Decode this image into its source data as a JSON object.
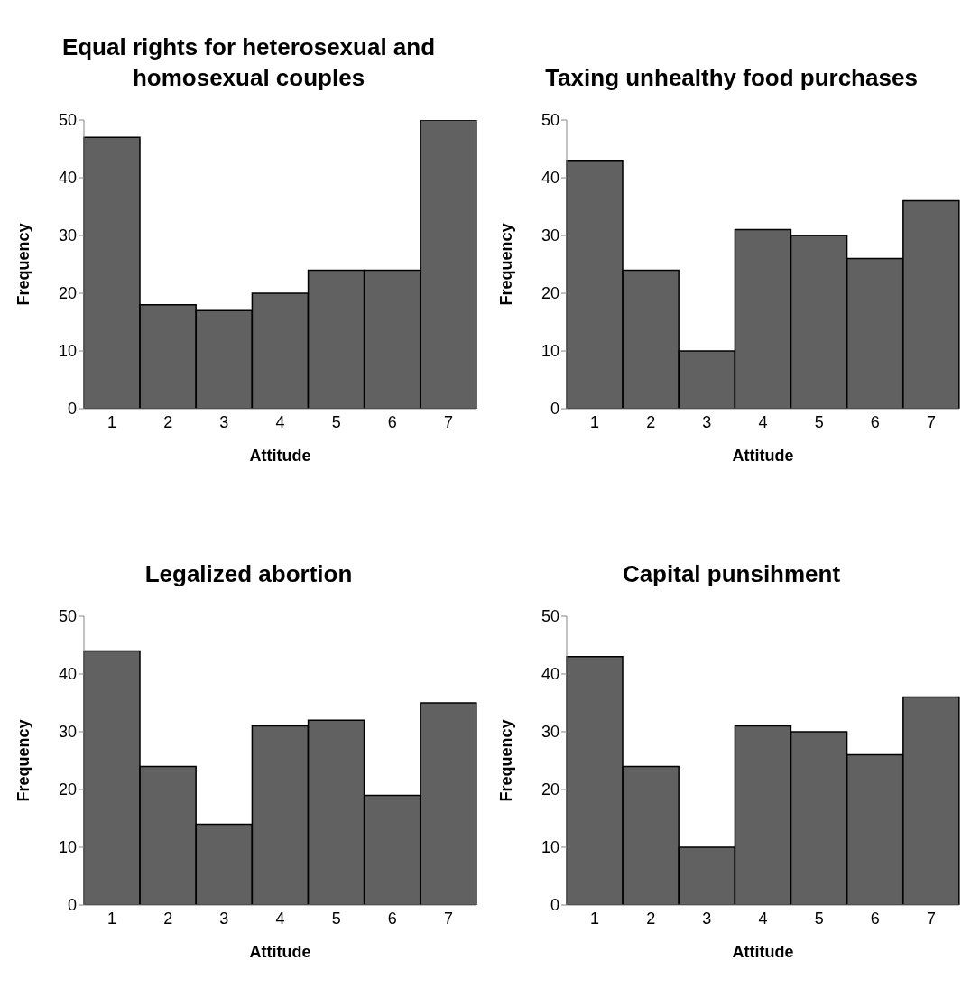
{
  "chart_data": [
    {
      "type": "bar",
      "title": "Equal rights for heterosexual and homosexual couples",
      "xlabel": "Attitude",
      "ylabel": "Frequency",
      "categories": [
        "1",
        "2",
        "3",
        "4",
        "5",
        "6",
        "7"
      ],
      "values": [
        47,
        18,
        17,
        20,
        24,
        24,
        50
      ],
      "color": "#616161",
      "ylim": [
        0,
        50
      ],
      "yticks": [
        0,
        10,
        20,
        30,
        40,
        50
      ]
    },
    {
      "type": "bar",
      "title": "Taxing unhealthy food purchases",
      "xlabel": "Attitude",
      "ylabel": "Frequency",
      "categories": [
        "1",
        "2",
        "3",
        "4",
        "5",
        "6",
        "7"
      ],
      "values": [
        43,
        24,
        10,
        31,
        30,
        26,
        36
      ],
      "color": "#616161",
      "ylim": [
        0,
        50
      ],
      "yticks": [
        0,
        10,
        20,
        30,
        40,
        50
      ]
    },
    {
      "type": "bar",
      "title": "Legalized abortion",
      "xlabel": "Attitude",
      "ylabel": "Frequency",
      "categories": [
        "1",
        "2",
        "3",
        "4",
        "5",
        "6",
        "7"
      ],
      "values": [
        44,
        24,
        14,
        31,
        32,
        19,
        35
      ],
      "color": "#616161",
      "ylim": [
        0,
        50
      ],
      "yticks": [
        0,
        10,
        20,
        30,
        40,
        50
      ]
    },
    {
      "type": "bar",
      "title": "Capital punsihment",
      "xlabel": "Attitude",
      "ylabel": "Frequency",
      "categories": [
        "1",
        "2",
        "3",
        "4",
        "5",
        "6",
        "7"
      ],
      "values": [
        43,
        24,
        10,
        31,
        30,
        26,
        36
      ],
      "color": "#616161",
      "ylim": [
        0,
        50
      ],
      "yticks": [
        0,
        10,
        20,
        30,
        40,
        50
      ]
    }
  ]
}
